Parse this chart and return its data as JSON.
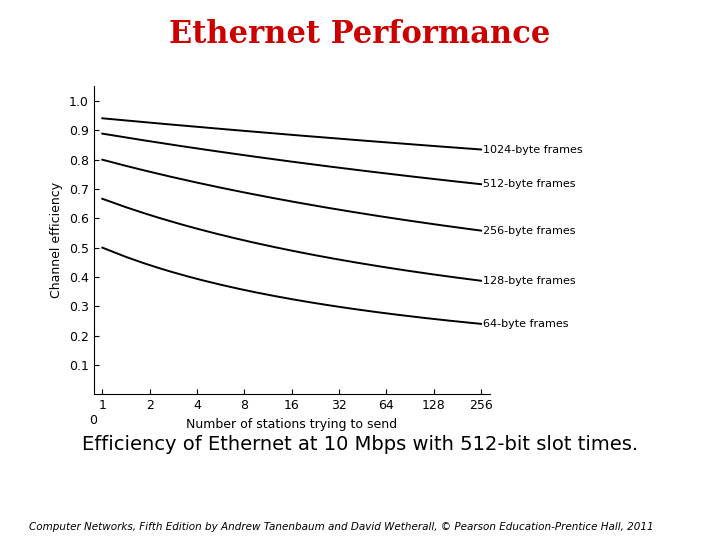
{
  "title": "Ethernet Performance",
  "title_color": "#cc0000",
  "title_fontsize": 22,
  "xlabel": "Number of stations trying to send",
  "ylabel": "Channel efficiency",
  "subtitle": "Efficiency of Ethernet at 10 Mbps with 512-bit slot times.",
  "subtitle_fontsize": 14,
  "caption": "Computer Networks, Fifth Edition by Andrew Tanenbaum and David Wetherall, © Pearson Education-Prentice Hall, 2011",
  "caption_fontsize": 7.5,
  "frame_sizes_bytes": [
    1024,
    512,
    256,
    128,
    64
  ],
  "slot_time_bits": 512,
  "line_color": "#000000",
  "line_width": 1.4,
  "bg_color": "#ffffff",
  "labels": [
    "1024-byte frames",
    "512-byte frames",
    "256-byte frames",
    "128-byte frames",
    "64-byte frames"
  ],
  "c_param": 0.271,
  "ylim": [
    0.0,
    1.05
  ],
  "yticks": [
    0.1,
    0.2,
    0.3,
    0.4,
    0.5,
    0.6,
    0.7,
    0.8,
    0.9,
    1.0
  ],
  "ytick_labels": [
    "0.1",
    "0.2",
    "0.3",
    "0.4",
    "0.5",
    "0.6",
    "0.7",
    "0.8",
    "0.9",
    "1.0"
  ],
  "xtick_vals": [
    1,
    2,
    4,
    8,
    16,
    32,
    64,
    128,
    256
  ],
  "xtick_labels": [
    "1",
    "2",
    "4",
    "8",
    "16",
    "32",
    "64",
    "128",
    "256"
  ]
}
